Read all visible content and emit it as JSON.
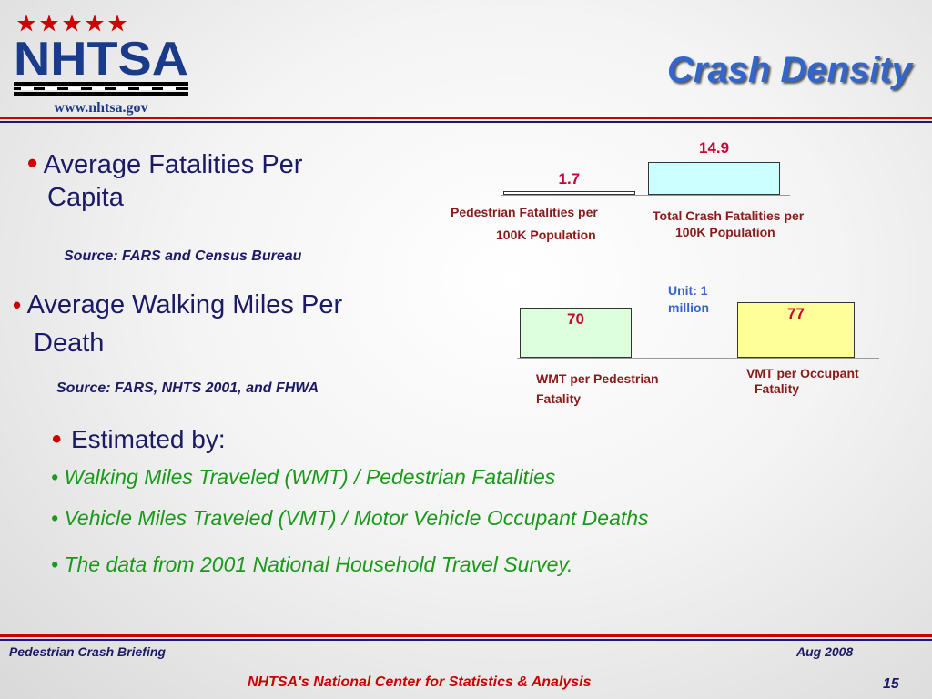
{
  "logo": {
    "text": "NHTSA",
    "url": "www.nhtsa.gov",
    "star_color": "#cc0000",
    "text_color": "#1a3a8a"
  },
  "title": "Crash Density",
  "section1": {
    "heading_line1": "Average Fatalities Per",
    "heading_line2": "Capita",
    "source": "Source:  FARS and Census Bureau"
  },
  "section2": {
    "heading_line1": "Average Walking Miles Per",
    "heading_line2": "Death",
    "source": "Source:  FARS, NHTS 2001, and FHWA",
    "unit_line1": "Unit: 1",
    "unit_line2": "million"
  },
  "section3": {
    "heading": "Estimated by:",
    "items": [
      "• Walking Miles Traveled (WMT) / Pedestrian Fatalities",
      "• Vehicle Miles Traveled (VMT) / Motor Vehicle Occupant Deaths",
      "• The data from 2001 National Household Travel Survey."
    ]
  },
  "chart_data": [
    {
      "type": "bar",
      "categories": [
        "Pedestrian Fatalities per 100K Population",
        "Total Crash Fatalities per 100K Population"
      ],
      "cat_lines": [
        [
          "Pedestrian Fatalities per",
          "100K Population"
        ],
        [
          "Total Crash Fatalities per",
          "100K Population"
        ]
      ],
      "values": [
        1.7,
        14.9
      ],
      "value_labels": [
        "1.7",
        "14.9"
      ],
      "colors": [
        "#ffffff",
        "#ccffff"
      ],
      "ylim": [
        0,
        14.9
      ]
    },
    {
      "type": "bar",
      "categories": [
        "WMT per Pedestrian Fatality",
        "VMT per Occupant Fatality"
      ],
      "cat_lines": [
        [
          "WMT per Pedestrian",
          "Fatality"
        ],
        [
          "VMT per Occupant",
          "Fatality"
        ]
      ],
      "values": [
        70,
        77
      ],
      "value_labels": [
        "70",
        "77"
      ],
      "colors": [
        "#ddffdd",
        "#ffff99"
      ],
      "ylim": [
        0,
        77
      ]
    }
  ],
  "footer": {
    "left": "Pedestrian Crash Briefing",
    "date": "Aug 2008",
    "center": "NHTSA's National Center for Statistics & Analysis",
    "page": "15"
  }
}
